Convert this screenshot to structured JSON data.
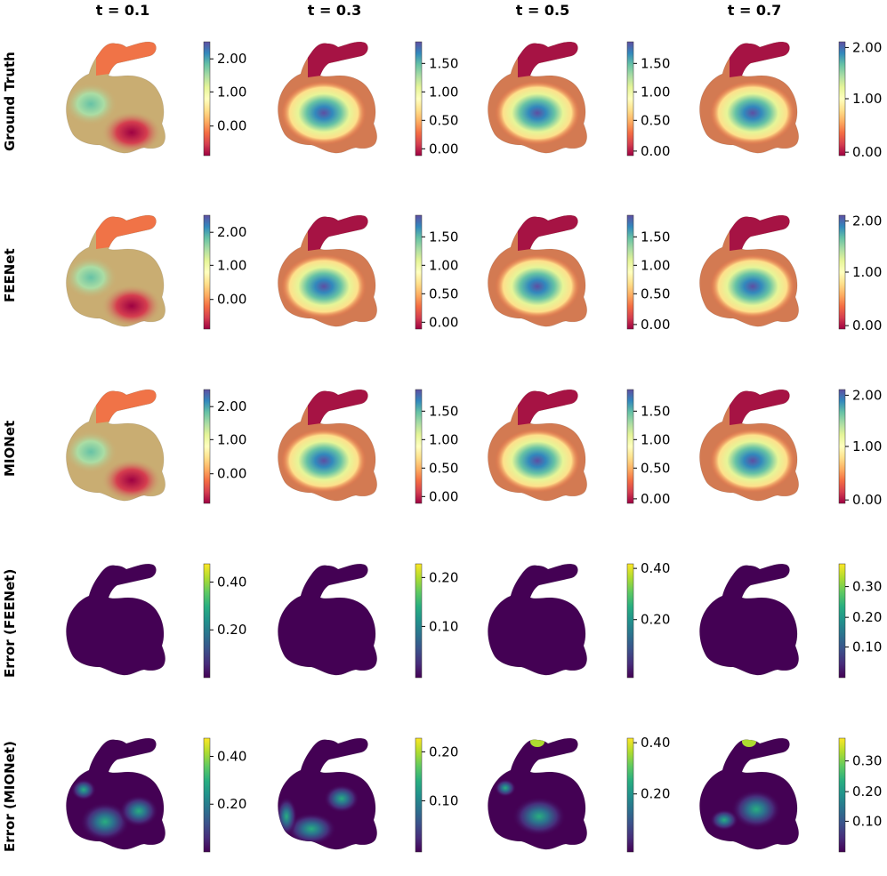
{
  "column_titles": [
    "t = 0.1",
    "t = 0.3",
    "t = 0.5",
    "t = 0.7"
  ],
  "row_labels": [
    "Ground Truth",
    "FEENet",
    "MIONet",
    "Error (FEENet)",
    "Error (MIONet)"
  ],
  "colormaps": {
    "solution": "spectral",
    "error": "viridis"
  },
  "colors": {
    "spectral": [
      "#9e0142",
      "#d53e4f",
      "#f46d43",
      "#fdae61",
      "#fee08b",
      "#ffffbf",
      "#e6f598",
      "#abdda4",
      "#66c2a5",
      "#3288bd",
      "#5e4fa2"
    ],
    "viridis": [
      "#440154",
      "#472d7b",
      "#3b528b",
      "#2c728e",
      "#21918c",
      "#28ae80",
      "#5ec962",
      "#addc30",
      "#fde725"
    ]
  },
  "colorbars": [
    [
      {
        "ticks": [
          "2.00",
          "1.00",
          "0.00"
        ]
      },
      {
        "ticks": [
          "1.50",
          "1.00",
          "0.50",
          "0.00"
        ]
      },
      {
        "ticks": [
          "1.50",
          "1.00",
          "0.50",
          "0.00"
        ]
      },
      {
        "ticks": [
          "2.00",
          "1.00",
          "0.00"
        ]
      }
    ],
    [
      {
        "ticks": [
          "2.00",
          "1.00",
          "0.00"
        ]
      },
      {
        "ticks": [
          "1.50",
          "1.00",
          "0.50",
          "0.00"
        ]
      },
      {
        "ticks": [
          "1.50",
          "1.00",
          "0.50",
          "0.00"
        ]
      },
      {
        "ticks": [
          "2.00",
          "1.00",
          "0.00"
        ]
      }
    ],
    [
      {
        "ticks": [
          "2.00",
          "1.00",
          "0.00"
        ]
      },
      {
        "ticks": [
          "1.50",
          "1.00",
          "0.50",
          "0.00"
        ]
      },
      {
        "ticks": [
          "1.50",
          "1.00",
          "0.50",
          "0.00"
        ]
      },
      {
        "ticks": [
          "2.00",
          "1.00",
          "0.00"
        ]
      }
    ],
    [
      {
        "ticks": [
          "0.40",
          "0.20"
        ]
      },
      {
        "ticks": [
          "0.20",
          "0.10"
        ]
      },
      {
        "ticks": [
          "0.40",
          "0.20"
        ]
      },
      {
        "ticks": [
          "0.30",
          "0.20",
          "0.10"
        ]
      }
    ],
    [
      {
        "ticks": [
          "0.40",
          "0.20"
        ]
      },
      {
        "ticks": [
          "0.20",
          "0.10"
        ]
      },
      {
        "ticks": [
          "0.40",
          "0.20"
        ]
      },
      {
        "ticks": [
          "0.30",
          "0.20",
          "0.10"
        ]
      }
    ]
  ]
}
